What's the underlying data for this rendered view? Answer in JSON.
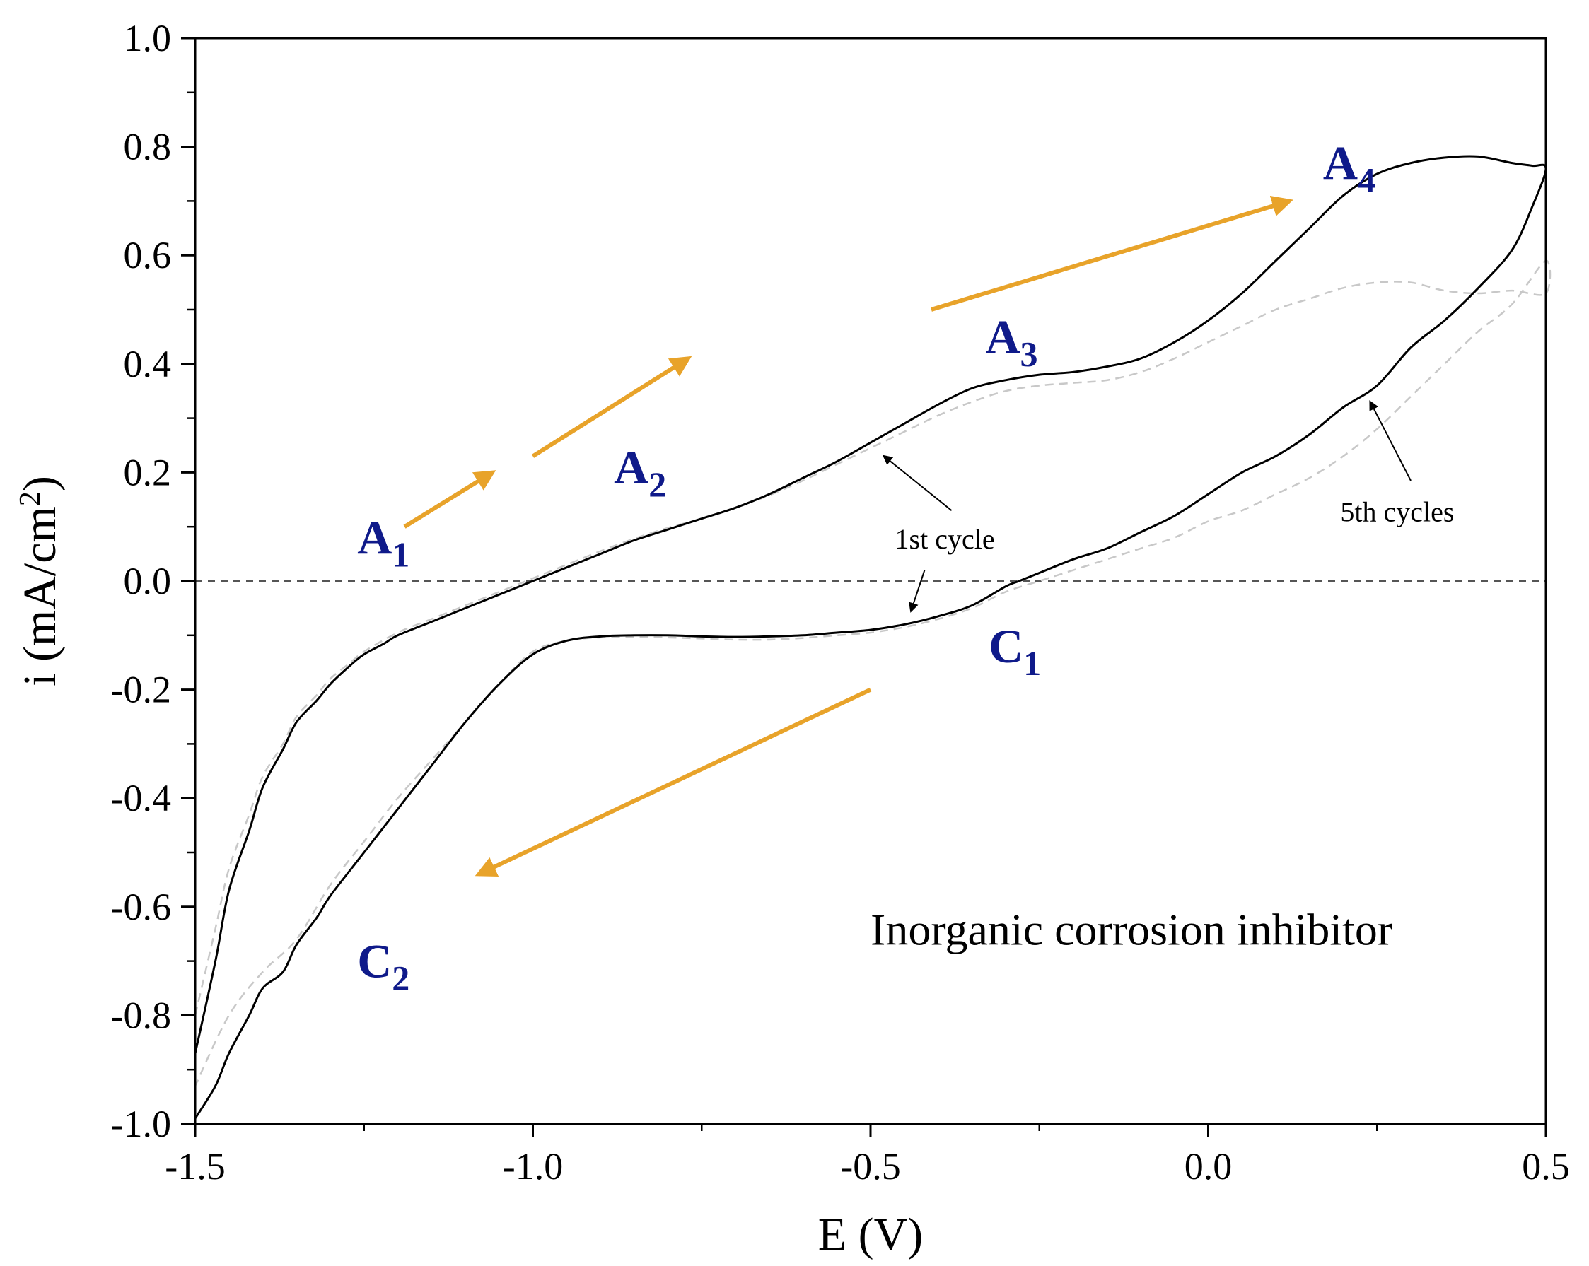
{
  "chart_data": {
    "type": "line",
    "title": "Inorganic corrosion inhibitor",
    "xlabel": "E (V)",
    "ylabel": {
      "prefix": "i (mA/cm",
      "sup": "2",
      "suffix": ")"
    },
    "xlim": [
      -1.5,
      0.5
    ],
    "ylim": [
      -1.0,
      1.0
    ],
    "x_ticks": [
      -1.5,
      -1.0,
      -0.5,
      0.0,
      0.5
    ],
    "x_tick_labels": [
      "-1.5",
      "-1.0",
      "-0.5",
      "0.0",
      "0.5"
    ],
    "x_minor_step": 0.25,
    "y_ticks": [
      -1.0,
      -0.8,
      -0.6,
      -0.4,
      -0.2,
      0.0,
      0.2,
      0.4,
      0.6,
      0.8,
      1.0
    ],
    "y_tick_labels": [
      "-1.0",
      "-0.8",
      "-0.6",
      "-0.4",
      "-0.2",
      "0.0",
      "0.2",
      "0.4",
      "0.6",
      "0.8",
      "1.0"
    ],
    "y_minor_step": 0.1,
    "zero_line": 0.0,
    "series": [
      {
        "name": "1st cycle",
        "style": "solid",
        "color": "#000000",
        "x": [
          -1.5,
          -1.47,
          -1.45,
          -1.42,
          -1.4,
          -1.37,
          -1.35,
          -1.32,
          -1.3,
          -1.27,
          -1.25,
          -1.22,
          -1.2,
          -1.15,
          -1.1,
          -1.05,
          -1.0,
          -0.98,
          -0.95,
          -0.9,
          -0.85,
          -0.8,
          -0.75,
          -0.7,
          -0.65,
          -0.6,
          -0.55,
          -0.5,
          -0.45,
          -0.4,
          -0.35,
          -0.3,
          -0.25,
          -0.2,
          -0.15,
          -0.1,
          -0.05,
          0.0,
          0.05,
          0.1,
          0.15,
          0.2,
          0.25,
          0.3,
          0.35,
          0.4,
          0.45,
          0.48,
          0.5,
          0.48,
          0.45,
          0.4,
          0.35,
          0.3,
          0.25,
          0.2,
          0.15,
          0.1,
          0.05,
          0.0,
          -0.05,
          -0.1,
          -0.15,
          -0.2,
          -0.25,
          -0.28,
          -0.3,
          -0.35,
          -0.4,
          -0.45,
          -0.5,
          -0.55,
          -0.6,
          -0.65,
          -0.7,
          -0.75,
          -0.8,
          -0.85,
          -0.9,
          -0.95,
          -1.0,
          -1.05,
          -1.1,
          -1.15,
          -1.2,
          -1.25,
          -1.3,
          -1.32,
          -1.35,
          -1.37,
          -1.4,
          -1.42,
          -1.45,
          -1.47,
          -1.5
        ],
        "y": [
          -0.87,
          -0.7,
          -0.57,
          -0.46,
          -0.38,
          -0.31,
          -0.26,
          -0.22,
          -0.19,
          -0.155,
          -0.135,
          -0.115,
          -0.1,
          -0.075,
          -0.05,
          -0.025,
          0.0,
          0.01,
          0.025,
          0.05,
          0.075,
          0.095,
          0.115,
          0.135,
          0.16,
          0.19,
          0.22,
          0.255,
          0.29,
          0.325,
          0.355,
          0.37,
          0.38,
          0.385,
          0.395,
          0.41,
          0.44,
          0.48,
          0.53,
          0.59,
          0.65,
          0.71,
          0.75,
          0.77,
          0.78,
          0.782,
          0.77,
          0.765,
          0.76,
          0.69,
          0.61,
          0.54,
          0.48,
          0.43,
          0.36,
          0.32,
          0.27,
          0.23,
          0.2,
          0.16,
          0.12,
          0.09,
          0.06,
          0.04,
          0.015,
          0.0,
          -0.01,
          -0.045,
          -0.065,
          -0.08,
          -0.09,
          -0.095,
          -0.1,
          -0.102,
          -0.103,
          -0.102,
          -0.1,
          -0.1,
          -0.102,
          -0.11,
          -0.135,
          -0.19,
          -0.26,
          -0.34,
          -0.42,
          -0.5,
          -0.58,
          -0.62,
          -0.67,
          -0.72,
          -0.75,
          -0.8,
          -0.87,
          -0.93,
          -0.99
        ]
      },
      {
        "name": "5th cycles",
        "style": "dashed",
        "color": "#c8c8c8",
        "x": [
          -1.5,
          -1.47,
          -1.45,
          -1.42,
          -1.4,
          -1.37,
          -1.35,
          -1.32,
          -1.3,
          -1.27,
          -1.25,
          -1.2,
          -1.15,
          -1.1,
          -1.05,
          -1.0,
          -0.95,
          -0.9,
          -0.85,
          -0.8,
          -0.75,
          -0.7,
          -0.65,
          -0.6,
          -0.55,
          -0.5,
          -0.45,
          -0.4,
          -0.35,
          -0.3,
          -0.25,
          -0.2,
          -0.15,
          -0.1,
          -0.05,
          0.0,
          0.05,
          0.1,
          0.15,
          0.2,
          0.25,
          0.3,
          0.35,
          0.4,
          0.45,
          0.5,
          0.5,
          0.45,
          0.4,
          0.35,
          0.3,
          0.25,
          0.2,
          0.15,
          0.1,
          0.05,
          0.0,
          -0.05,
          -0.1,
          -0.15,
          -0.2,
          -0.25,
          -0.3,
          -0.35,
          -0.4,
          -0.45,
          -0.5,
          -0.55,
          -0.6,
          -0.65,
          -0.7,
          -0.75,
          -0.8,
          -0.85,
          -0.9,
          -0.95,
          -1.0,
          -1.05,
          -1.1,
          -1.15,
          -1.2,
          -1.25,
          -1.3,
          -1.35,
          -1.4,
          -1.45,
          -1.5
        ],
        "y": [
          -0.8,
          -0.64,
          -0.53,
          -0.43,
          -0.36,
          -0.3,
          -0.25,
          -0.21,
          -0.18,
          -0.15,
          -0.13,
          -0.095,
          -0.07,
          -0.045,
          -0.02,
          0.005,
          0.03,
          0.055,
          0.078,
          0.098,
          0.115,
          0.135,
          0.158,
          0.185,
          0.215,
          0.245,
          0.275,
          0.305,
          0.33,
          0.35,
          0.36,
          0.365,
          0.37,
          0.385,
          0.41,
          0.44,
          0.47,
          0.5,
          0.52,
          0.54,
          0.55,
          0.55,
          0.535,
          0.53,
          0.535,
          0.53,
          0.59,
          0.51,
          0.46,
          0.4,
          0.34,
          0.28,
          0.23,
          0.19,
          0.16,
          0.13,
          0.11,
          0.08,
          0.06,
          0.04,
          0.02,
          0.0,
          -0.02,
          -0.05,
          -0.07,
          -0.085,
          -0.095,
          -0.1,
          -0.105,
          -0.108,
          -0.108,
          -0.106,
          -0.104,
          -0.103,
          -0.104,
          -0.11,
          -0.13,
          -0.19,
          -0.26,
          -0.33,
          -0.4,
          -0.48,
          -0.56,
          -0.66,
          -0.72,
          -0.8,
          -0.93
        ]
      }
    ],
    "annotations": {
      "peaks": [
        {
          "main": "A",
          "sub": "1",
          "x": -1.26,
          "y": 0.05,
          "color": "#0f1a8a"
        },
        {
          "main": "A",
          "sub": "2",
          "x": -0.88,
          "y": 0.18,
          "color": "#0f1a8a"
        },
        {
          "main": "A",
          "sub": "3",
          "x": -0.33,
          "y": 0.42,
          "color": "#0f1a8a"
        },
        {
          "main": "A",
          "sub": "4",
          "x": 0.17,
          "y": 0.74,
          "color": "#0f1a8a"
        },
        {
          "main": "C",
          "sub": "1",
          "x": -0.325,
          "y": -0.15,
          "color": "#0f1a8a"
        },
        {
          "main": "C",
          "sub": "2",
          "x": -1.26,
          "y": -0.73,
          "color": "#0f1a8a"
        }
      ],
      "sweep_arrows": [
        {
          "from": [
            -1.19,
            0.1
          ],
          "to": [
            -1.06,
            0.2
          ],
          "color": "#e8a32a"
        },
        {
          "from": [
            -1.0,
            0.23
          ],
          "to": [
            -0.77,
            0.41
          ],
          "color": "#e8a32a"
        },
        {
          "from": [
            -0.41,
            0.5
          ],
          "to": [
            0.12,
            0.7
          ],
          "color": "#e8a32a"
        },
        {
          "from": [
            -0.5,
            -0.2
          ],
          "to": [
            -1.08,
            -0.54
          ],
          "color": "#e8a32a"
        }
      ],
      "callouts": [
        {
          "text": "1st cycle",
          "x": -0.39,
          "y": 0.06,
          "pointers": [
            {
              "from": [
                -0.38,
                0.13
              ],
              "to": [
                -0.48,
                0.23
              ]
            },
            {
              "from": [
                -0.42,
                0.02
              ],
              "to": [
                -0.44,
                -0.055
              ]
            }
          ]
        },
        {
          "text": "5th cycles",
          "x": 0.28,
          "y": 0.11,
          "pointers": [
            {
              "from": [
                0.3,
                0.185
              ],
              "to": [
                0.24,
                0.33
              ]
            }
          ]
        }
      ]
    }
  }
}
